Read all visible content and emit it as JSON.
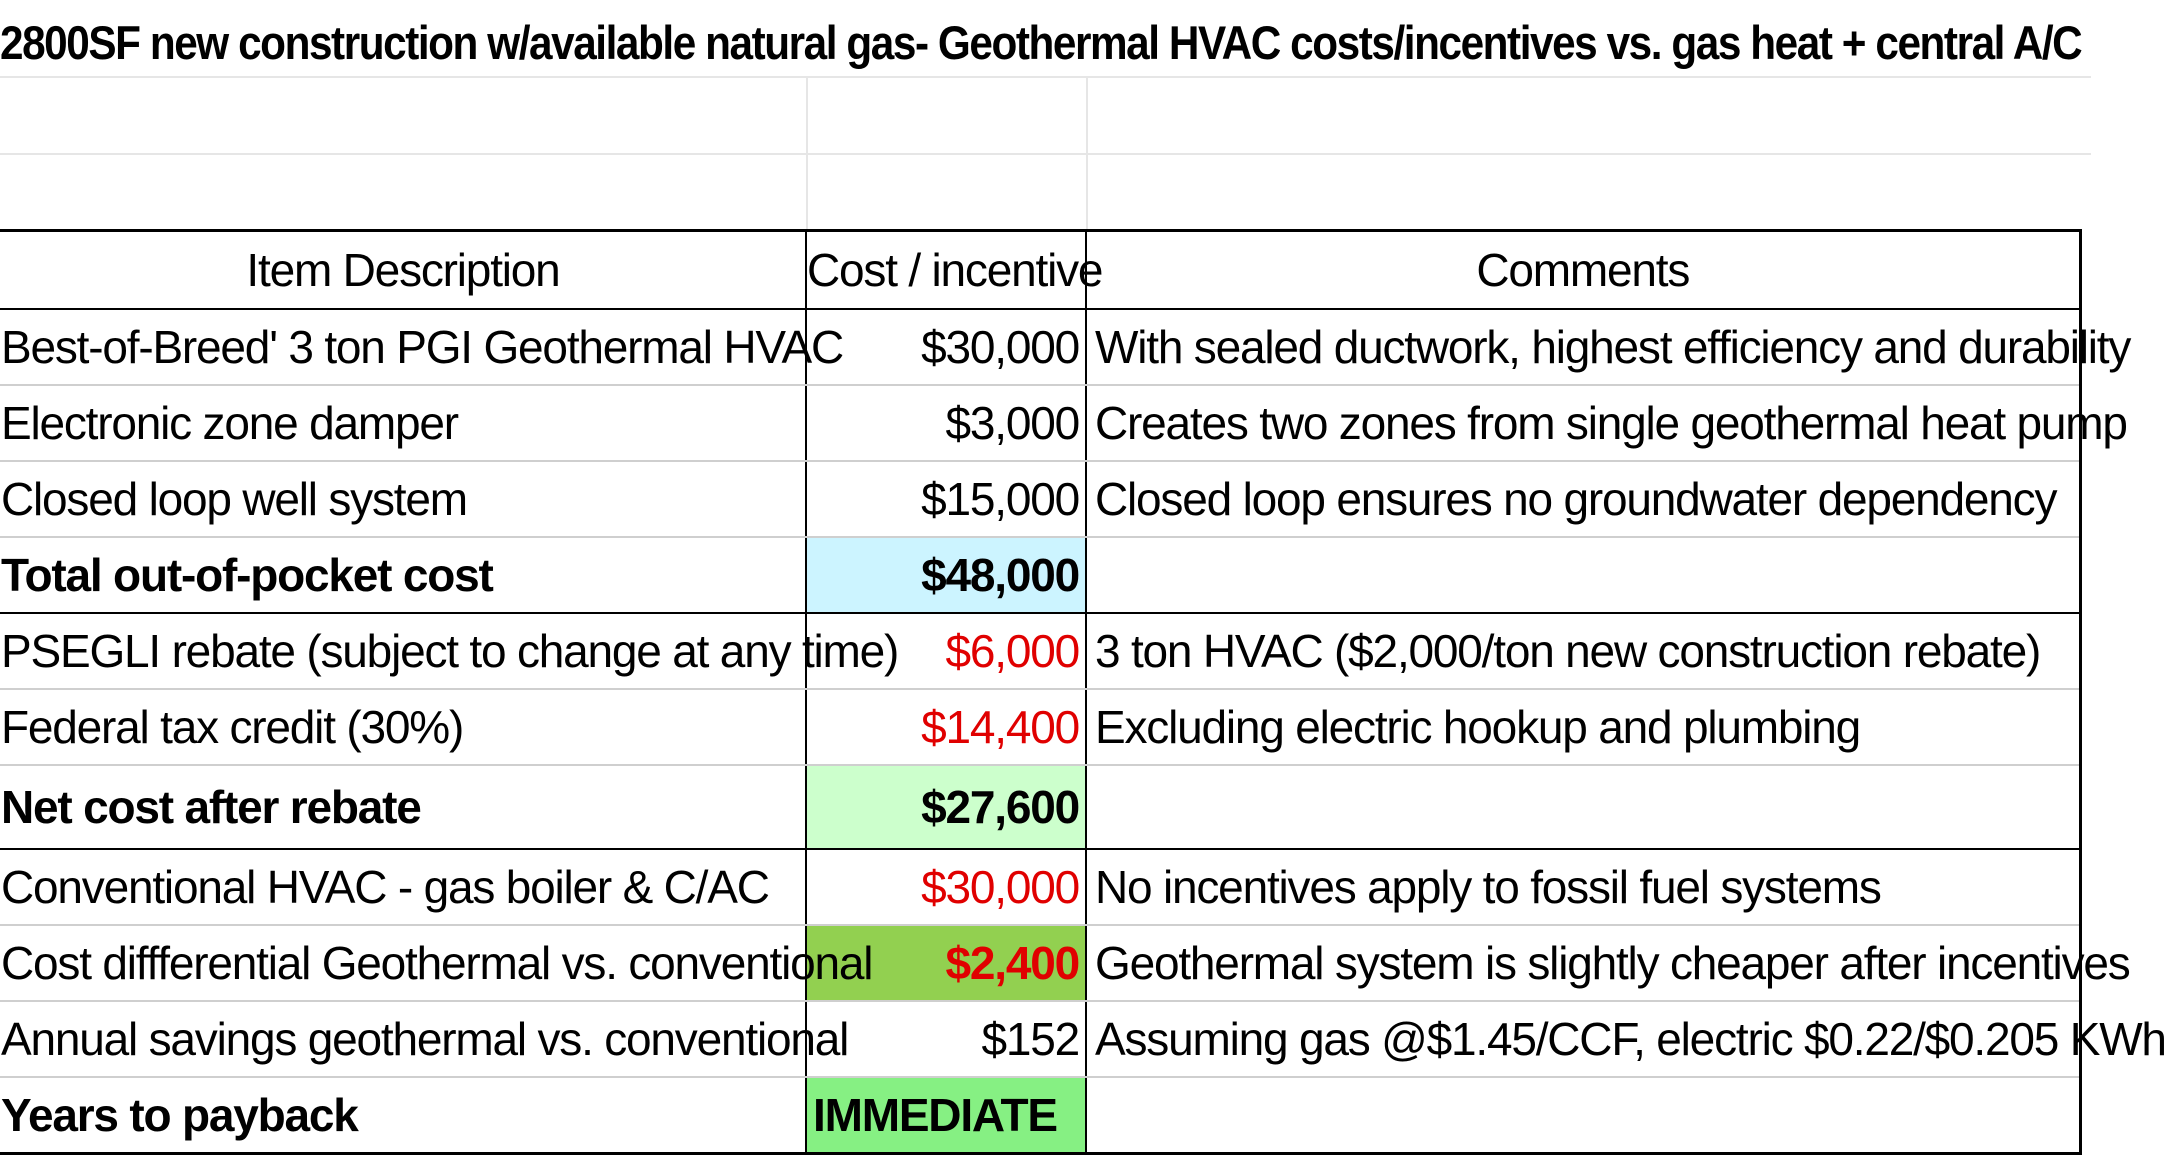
{
  "title": "2800SF new construction w/available natural gas- Geothermal HVAC costs/incentives vs. gas heat + central A/C",
  "colors": {
    "incentive_red": "#e00000",
    "total_highlight": "#ccf4ff",
    "net_highlight": "#ccffcc",
    "differential_highlight": "#92d050",
    "payback_highlight": "#86f083"
  },
  "table": {
    "headers": {
      "description": "Item Description",
      "cost": "Cost / incentive",
      "comments": "Comments"
    },
    "rows": [
      {
        "description": "Best-of-Breed' 3 ton PGI Geothermal HVAC",
        "cost": "$30,000",
        "comment": "With sealed ductwork, highest efficiency and durability"
      },
      {
        "description": "Electronic zone damper",
        "cost": "$3,000",
        "comment": "Creates two zones from single geothermal heat pump"
      },
      {
        "description": "Closed loop well system",
        "cost": "$15,000",
        "comment": "Closed loop ensures no groundwater dependency"
      },
      {
        "description": "Total out-of-pocket cost",
        "cost": "$48,000",
        "comment": ""
      },
      {
        "description": "PSEGLI rebate (subject to change at any time)",
        "cost": "$6,000",
        "comment": "3 ton HVAC ($2,000/ton new construction rebate)"
      },
      {
        "description": "Federal tax credit (30%)",
        "cost": "$14,400",
        "comment": "Excluding electric hookup and plumbing"
      },
      {
        "description": "Net cost after rebate",
        "cost": "$27,600",
        "comment": ""
      },
      {
        "description": "Conventional HVAC - gas boiler & C/AC",
        "cost": "$30,000",
        "comment": "No incentives apply to fossil fuel systems"
      },
      {
        "description": "Cost diffferential Geothermal  vs. conventional",
        "cost": "$2,400",
        "comment": "Geothermal system is slightly cheaper after incentives"
      },
      {
        "description": "Annual savings geothermal vs. conventional",
        "cost": "$152",
        "comment": "Assuming gas @$1.45/CCF, electric $0.22/$0.205 KWh"
      },
      {
        "description": "Years to payback",
        "cost": "IMMEDIATE",
        "comment": ""
      }
    ]
  }
}
